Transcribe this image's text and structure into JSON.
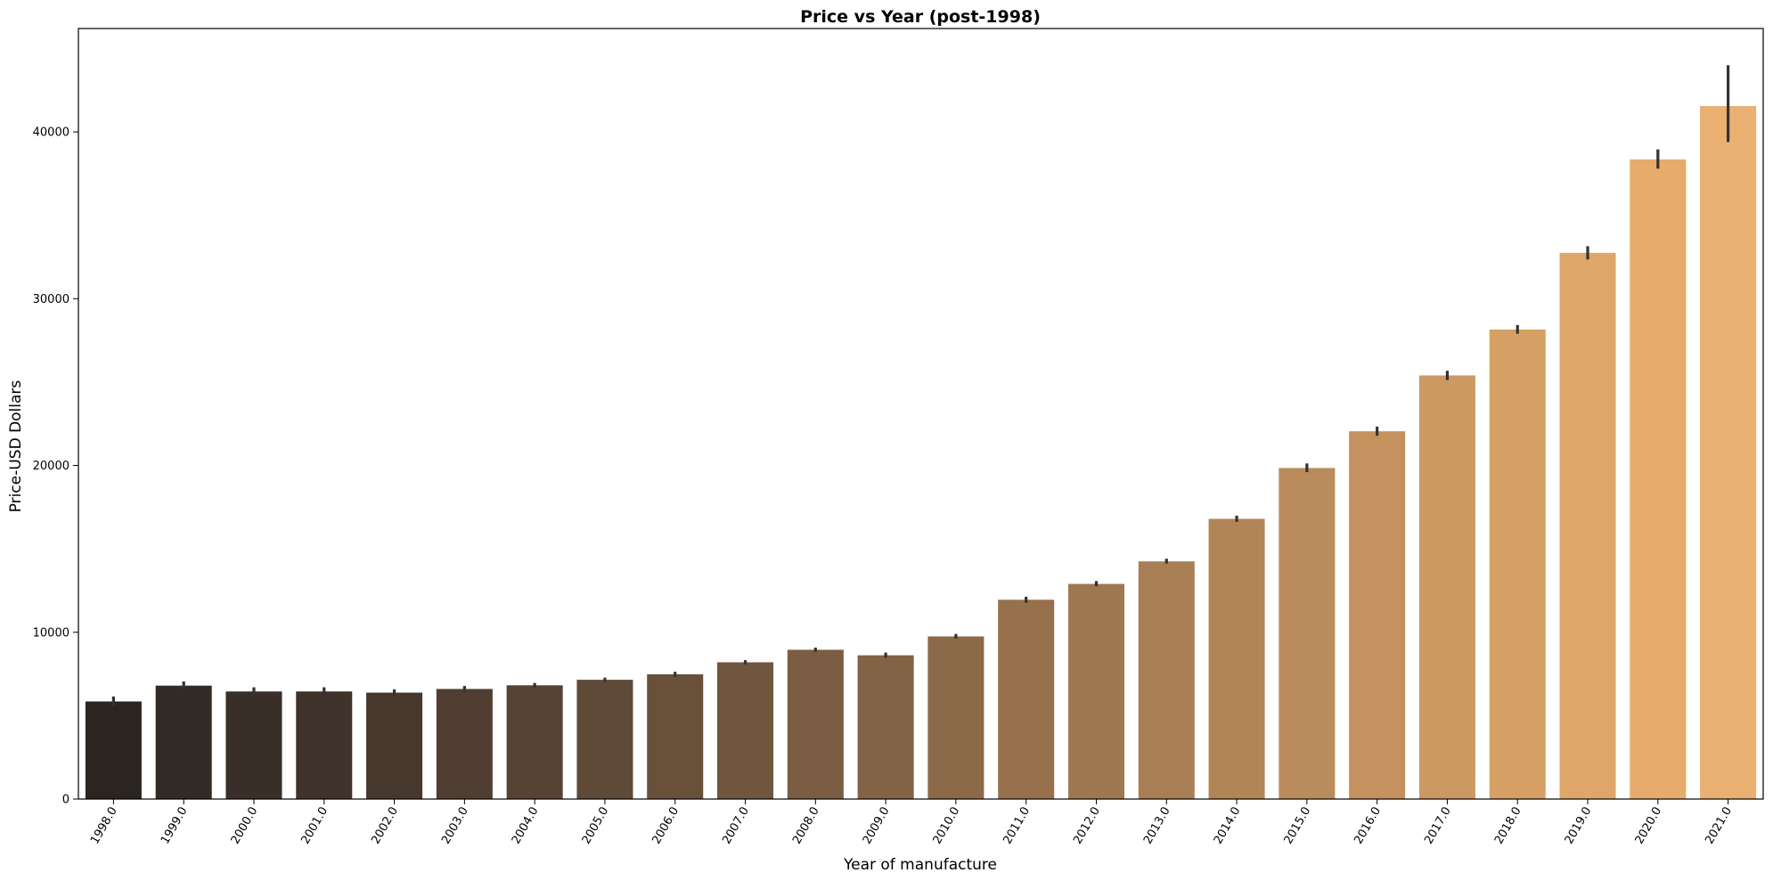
{
  "chart_data": {
    "type": "bar",
    "title": "Price vs Year (post-1998)",
    "xlabel": "Year of manufacture",
    "ylabel": "Price-USD Dollars",
    "categories": [
      "1998.0",
      "1999.0",
      "2000.0",
      "2001.0",
      "2002.0",
      "2003.0",
      "2004.0",
      "2005.0",
      "2006.0",
      "2007.0",
      "2008.0",
      "2009.0",
      "2010.0",
      "2011.0",
      "2012.0",
      "2013.0",
      "2014.0",
      "2015.0",
      "2016.0",
      "2017.0",
      "2018.0",
      "2019.0",
      "2020.0",
      "2021.0"
    ],
    "values": [
      5850,
      6800,
      6450,
      6450,
      6380,
      6600,
      6820,
      7150,
      7480,
      8200,
      8950,
      8620,
      9750,
      11950,
      12900,
      14250,
      16800,
      19850,
      22050,
      25400,
      28150,
      32750,
      38350,
      41550
    ],
    "error_bars": [
      [
        5550,
        6150
      ],
      [
        6550,
        7050
      ],
      [
        6250,
        6700
      ],
      [
        6250,
        6700
      ],
      [
        6200,
        6580
      ],
      [
        6450,
        6780
      ],
      [
        6680,
        6960
      ],
      [
        7020,
        7280
      ],
      [
        7330,
        7630
      ],
      [
        8080,
        8330
      ],
      [
        8830,
        9080
      ],
      [
        8470,
        8780
      ],
      [
        9620,
        9900
      ],
      [
        11770,
        12130
      ],
      [
        12760,
        13070
      ],
      [
        14120,
        14410
      ],
      [
        16620,
        16990
      ],
      [
        19600,
        20120
      ],
      [
        21780,
        22330
      ],
      [
        25120,
        25680
      ],
      [
        27900,
        28420
      ],
      [
        32350,
        33150
      ],
      [
        37800,
        38950
      ],
      [
        39400,
        44000
      ]
    ],
    "yticks": [
      0,
      10000,
      20000,
      30000,
      40000
    ],
    "ylim": [
      0,
      46200
    ],
    "grid": false,
    "bar_colors": [
      "#2b2522",
      "#322a25",
      "#392f28",
      "#40332b",
      "#47382d",
      "#4f3e31",
      "#574334",
      "#5f4a38",
      "#68503b",
      "#70563e",
      "#7a5d42",
      "#836345",
      "#8c6a49",
      "#96714c",
      "#9f7850",
      "#a87e54",
      "#b28557",
      "#bb8c5b",
      "#c4925e",
      "#cd9962",
      "#d6a065",
      "#dfa669",
      "#e7ac6c",
      "#e9b071"
    ],
    "error_color": "#333333"
  }
}
